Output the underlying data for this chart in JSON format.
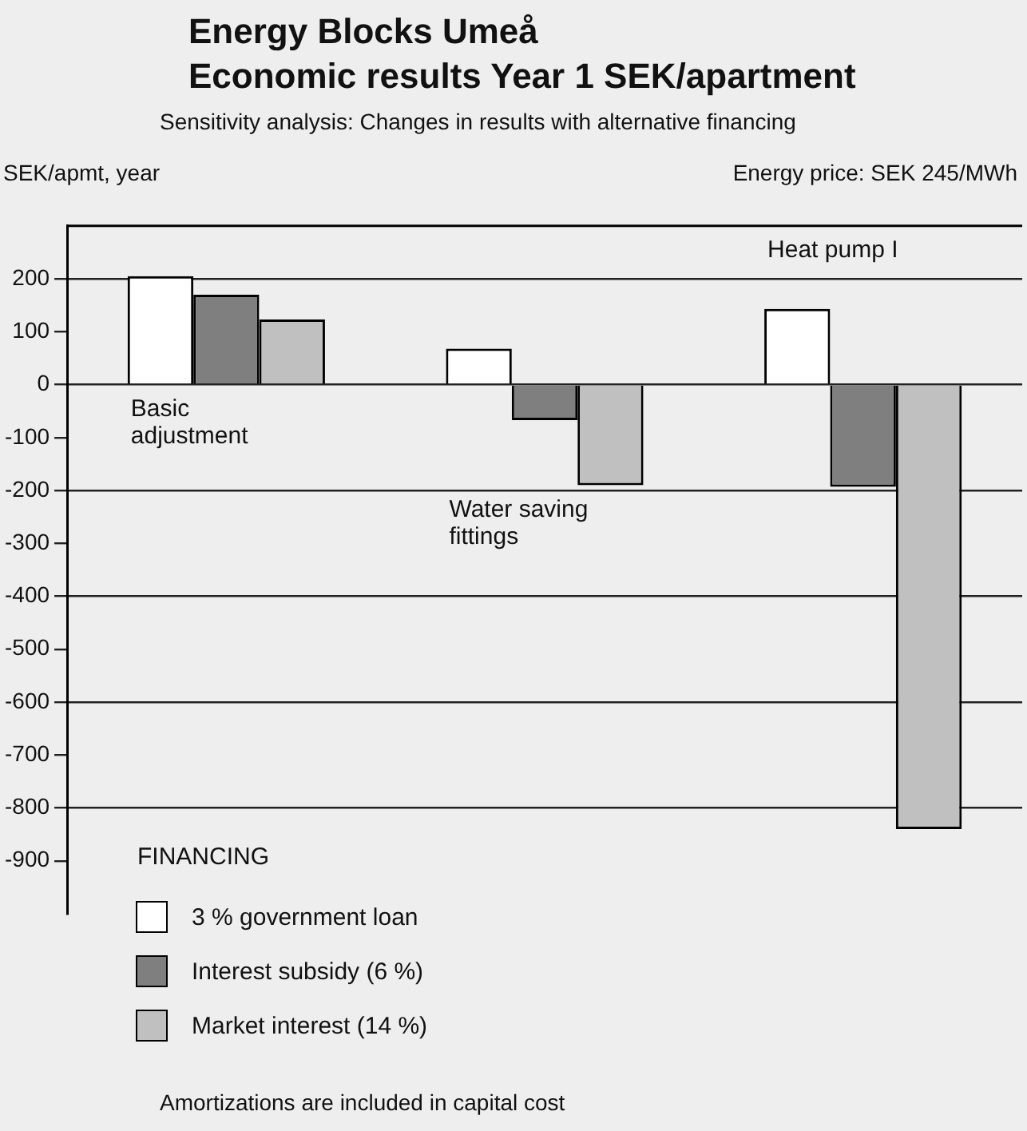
{
  "chart_data": {
    "type": "bar",
    "title": "Energy Blocks Umeå\nEconomic results Year 1 SEK/apartment",
    "subtitle": "Sensitivity analysis: Changes in results with alternative financing",
    "ylabel": "SEK/apmt, year",
    "legend_title": "FINANCING",
    "annotations": [
      "Energy price: SEK 245/MWh",
      "Amortizations are included in capital cost"
    ],
    "categories": [
      "Basic adjustment",
      "Water saving fittings",
      "Heat pump I"
    ],
    "series": [
      {
        "name": "3 % government loan",
        "color": "#ffffff",
        "values": [
          205,
          68,
          143
        ]
      },
      {
        "name": "Interest subsidy (6 %)",
        "color": "#7f7f7f",
        "values": [
          170,
          -67,
          -193
        ]
      },
      {
        "name": "Market interest (14 %)",
        "color": "#c0c0c0",
        "values": [
          123,
          -190,
          -840
        ]
      }
    ],
    "ylim": [
      -1000,
      300
    ],
    "yticks": [
      -900,
      -800,
      -700,
      -600,
      -500,
      -400,
      -300,
      -200,
      -100,
      0,
      100,
      200
    ],
    "grid": "y",
    "legend": "bottom left"
  }
}
